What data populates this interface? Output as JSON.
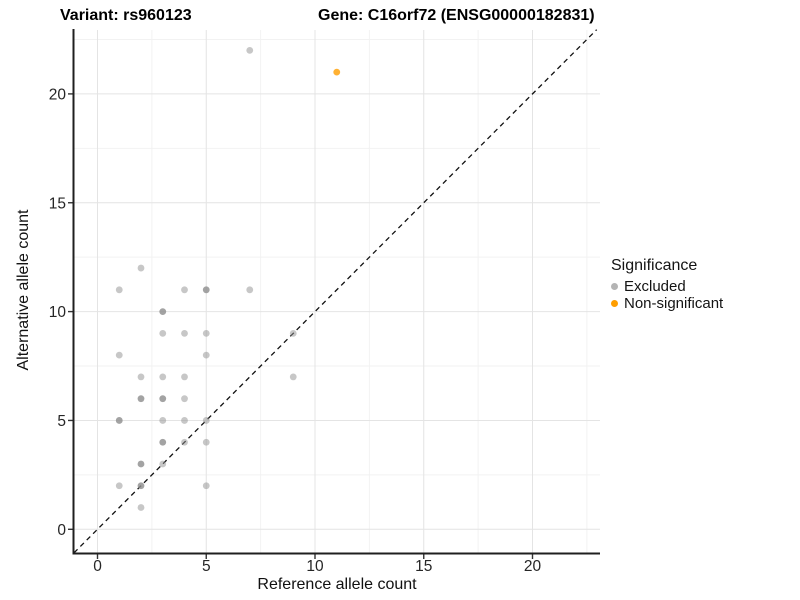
{
  "titles": {
    "variant": "Variant: rs960123",
    "gene": "Gene: C16orf72 (ENSG00000182831)"
  },
  "axes": {
    "x": {
      "label": "Reference allele count",
      "ticks": [
        "0",
        "5",
        "10",
        "15",
        "20"
      ],
      "tick_values": [
        0,
        5,
        10,
        15,
        20
      ]
    },
    "y": {
      "label": "Alternative allele count",
      "ticks": [
        "0",
        "5",
        "10",
        "15",
        "20"
      ],
      "tick_values": [
        0,
        5,
        10,
        15,
        20
      ]
    }
  },
  "legend": {
    "title": "Significance",
    "position": "right",
    "items": [
      {
        "label": "Excluded",
        "color": "#b4b4b4"
      },
      {
        "label": "Non-significant",
        "color": "#FF9E00"
      }
    ]
  },
  "chart_data": {
    "type": "scatter",
    "title": "Variant: rs960123 — Gene: C16orf72 (ENSG00000182831)",
    "xlabel": "Reference allele count",
    "ylabel": "Alternative allele count",
    "xlim": [
      -1.08,
      23.1
    ],
    "ylim": [
      -1.09,
      22.95
    ],
    "x_major_ticks": [
      0,
      5,
      10,
      15,
      20
    ],
    "y_major_ticks": [
      0,
      5,
      10,
      15,
      20
    ],
    "x_minor_ticks": [
      2.5,
      7.5,
      12.5,
      17.5,
      22.5
    ],
    "y_minor_ticks": [
      2.5,
      7.5,
      12.5,
      17.5,
      22.5
    ],
    "grid": true,
    "identity_line": {
      "style": "dashed",
      "slope": 1,
      "intercept": 0,
      "color": "#111111"
    },
    "series": [
      {
        "name": "Excluded",
        "color": "#8f8f8f",
        "opacity": 0.5,
        "overlap_opacity": 0.82,
        "points": [
          [
            7,
            22,
            1
          ],
          [
            2,
            12,
            1
          ],
          [
            1,
            11,
            1
          ],
          [
            4,
            11,
            1
          ],
          [
            5,
            11,
            2
          ],
          [
            7,
            11,
            1
          ],
          [
            3,
            10,
            2
          ],
          [
            3,
            9,
            1
          ],
          [
            4,
            9,
            1
          ],
          [
            5,
            9,
            1
          ],
          [
            9,
            9,
            1
          ],
          [
            1,
            8,
            1
          ],
          [
            5,
            8,
            1
          ],
          [
            2,
            7,
            1
          ],
          [
            3,
            7,
            1
          ],
          [
            4,
            7,
            1
          ],
          [
            9,
            7,
            1
          ],
          [
            2,
            6,
            2
          ],
          [
            3,
            6,
            2
          ],
          [
            4,
            6,
            1
          ],
          [
            1,
            5,
            2
          ],
          [
            3,
            5,
            1
          ],
          [
            4,
            5,
            1
          ],
          [
            5,
            5,
            1
          ],
          [
            3,
            4,
            2
          ],
          [
            4,
            4,
            1
          ],
          [
            5,
            4,
            1
          ],
          [
            2,
            3,
            2
          ],
          [
            3,
            3,
            1
          ],
          [
            1,
            2,
            1
          ],
          [
            2,
            2,
            2
          ],
          [
            5,
            2,
            1
          ],
          [
            2,
            1,
            1
          ]
        ]
      },
      {
        "name": "Non-significant",
        "color": "#FF9E00",
        "opacity": 0.8,
        "overlap_opacity": 0.9,
        "points": [
          [
            11,
            21,
            1
          ]
        ]
      }
    ]
  }
}
